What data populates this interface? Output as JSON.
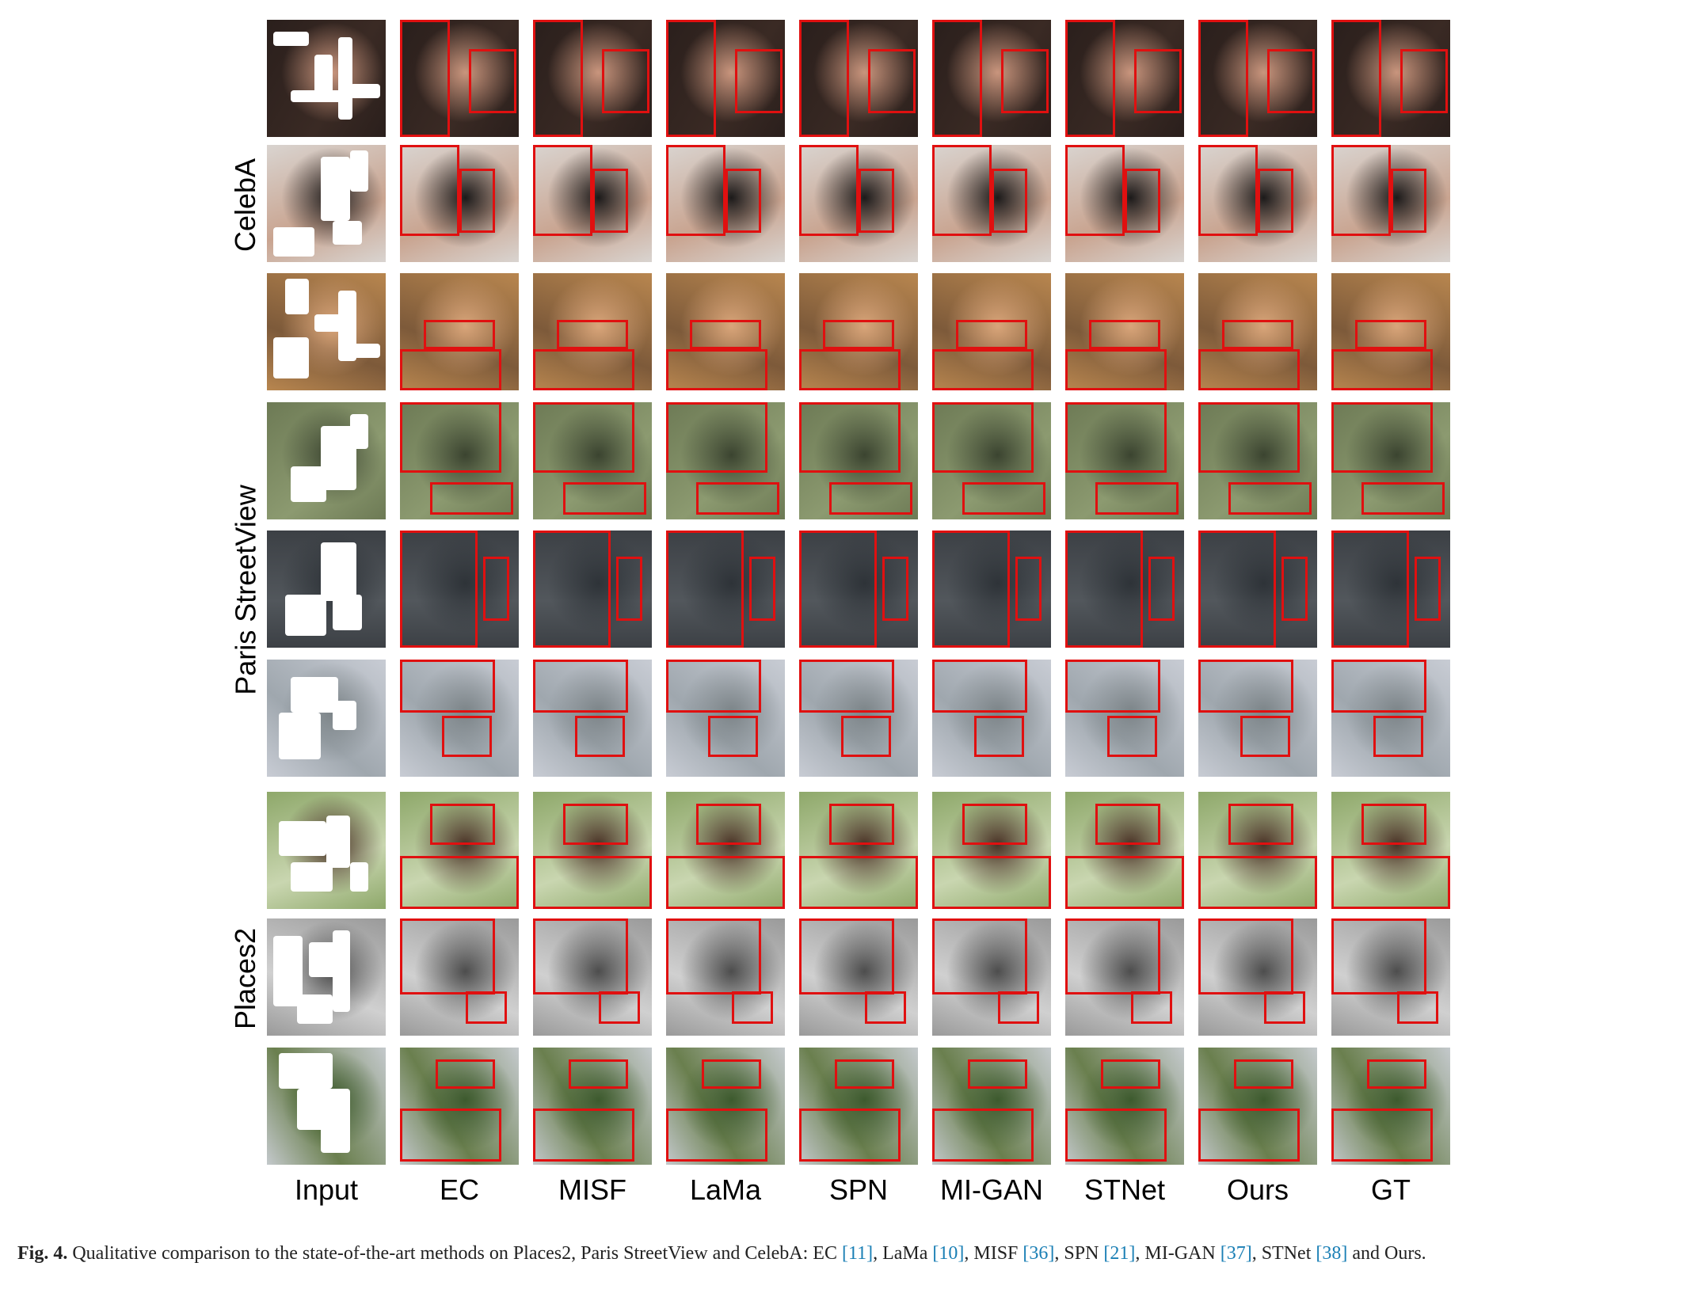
{
  "figure": {
    "columns": [
      "Input",
      "EC",
      "MISF",
      "LaMa",
      "SPN",
      "MI-GAN",
      "STNet",
      "Ours",
      "GT"
    ],
    "datasets": [
      {
        "label": "CelebA",
        "rows": [
          {
            "scene": "face-bald-man",
            "colors": [
              "#2a1f1c",
              "#c9957d",
              "#3a2a24"
            ]
          },
          {
            "scene": "face-dark-hair",
            "colors": [
              "#d9d4d0",
              "#1c1a1a",
              "#c9a490"
            ]
          },
          {
            "scene": "face-blonde",
            "colors": [
              "#b8864f",
              "#d9a57a",
              "#7d5a3a"
            ]
          }
        ]
      },
      {
        "label": "Paris StreetView",
        "rows": [
          {
            "scene": "street-tree-river",
            "colors": [
              "#6d7a55",
              "#3b4430",
              "#8c9a70"
            ]
          },
          {
            "scene": "street-wall-door",
            "colors": [
              "#3c4045",
              "#2e3338",
              "#52575c"
            ]
          },
          {
            "scene": "street-fence-sky",
            "colors": [
              "#c8ccd4",
              "#7c8488",
              "#9fa7ae"
            ]
          }
        ]
      },
      {
        "label": "Places2",
        "rows": [
          {
            "scene": "place-roof-leaves",
            "colors": [
              "#8ea86a",
              "#4a3226",
              "#c9d6b0"
            ]
          },
          {
            "scene": "place-bw-stairs",
            "colors": [
              "#9a9a9a",
              "#4d4d4d",
              "#d0d0d0"
            ]
          },
          {
            "scene": "place-trees-sky",
            "colors": [
              "#c4c9cc",
              "#3d5a2e",
              "#6a7f4e"
            ]
          }
        ]
      }
    ],
    "caption": {
      "fig_no": "Fig. 4.",
      "text_1": "Qualitative comparison to the state-of-the-art methods on Places2, Paris StreetView and CelebA: EC",
      "ref_ec": "[11]",
      "text_2": ", LaMa",
      "ref_lama": "[10]",
      "text_3": ", MISF",
      "ref_misf": "[36]",
      "text_4": ", SPN",
      "ref_spn": "[21]",
      "text_5": ", MI-GAN",
      "ref_migan": "[37]",
      "text_6": ", STNet",
      "ref_stnet": "[38]",
      "text_7": " and Ours."
    },
    "colors": {
      "zoom_box": "#e01010",
      "mask": "#ffffff",
      "ref_link": "#1a7fb5"
    }
  }
}
